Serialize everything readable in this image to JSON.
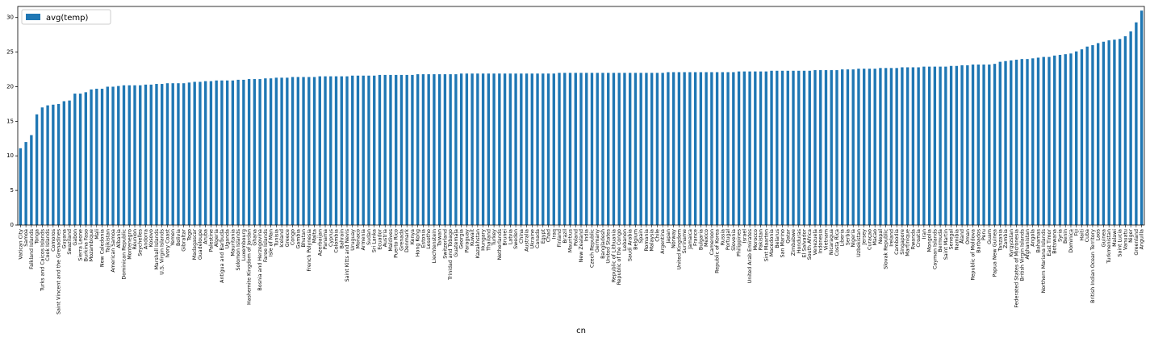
{
  "chart_data": {
    "type": "bar",
    "xlabel": "cn",
    "color": "#1f77b4",
    "legend": "upper left",
    "ylim": [
      0,
      31.6
    ],
    "yticks": [
      0,
      5,
      10,
      15,
      20,
      25,
      30
    ],
    "series": [
      {
        "name": "avg(temp)",
        "color": "#1f77b4",
        "values": [
          11.1,
          12,
          13,
          16,
          17,
          17.3,
          17.4,
          17.5,
          17.9,
          18,
          19,
          19,
          19.2,
          19.6,
          19.7,
          19.7,
          20,
          20,
          20.1,
          20.2,
          20.2,
          20.2,
          20.2,
          20.3,
          20.3,
          20.4,
          20.4,
          20.5,
          20.5,
          20.5,
          20.5,
          20.6,
          20.7,
          20.7,
          20.8,
          20.8,
          20.9,
          20.9,
          20.9,
          20.9,
          21,
          21,
          21.1,
          21.1,
          21.1,
          21.2,
          21.2,
          21.3,
          21.3,
          21.3,
          21.4,
          21.4,
          21.4,
          21.4,
          21.4,
          21.5,
          21.5,
          21.5,
          21.5,
          21.5,
          21.5,
          21.6,
          21.6,
          21.6,
          21.6,
          21.6,
          21.7,
          21.7,
          21.7,
          21.7,
          21.7,
          21.7,
          21.7,
          21.8,
          21.8,
          21.8,
          21.8,
          21.8,
          21.8,
          21.8,
          21.8,
          21.9,
          21.9,
          21.9,
          21.9,
          21.9,
          21.9,
          21.9,
          21.9,
          21.9,
          21.9,
          21.9,
          21.9,
          21.9,
          21.9,
          21.9,
          21.9,
          21.9,
          21.9,
          22,
          22,
          22,
          22,
          22,
          22,
          22,
          22,
          22,
          22,
          22,
          22,
          22,
          22,
          22,
          22,
          22,
          22,
          22,
          22,
          22.1,
          22.1,
          22.1,
          22.1,
          22.1,
          22.1,
          22.1,
          22.1,
          22.1,
          22.1,
          22.1,
          22.1,
          22.1,
          22.2,
          22.2,
          22.2,
          22.2,
          22.2,
          22.2,
          22.3,
          22.3,
          22.3,
          22.3,
          22.3,
          22.3,
          22.3,
          22.3,
          22.4,
          22.4,
          22.4,
          22.4,
          22.4,
          22.5,
          22.5,
          22.5,
          22.6,
          22.6,
          22.6,
          22.6,
          22.7,
          22.7,
          22.7,
          22.7,
          22.8,
          22.8,
          22.8,
          22.8,
          22.9,
          22.9,
          22.9,
          22.9,
          22.9,
          23,
          23,
          23.1,
          23.1,
          23.2,
          23.2,
          23.2,
          23.2,
          23.3,
          23.6,
          23.7,
          23.8,
          23.9,
          24,
          24,
          24.1,
          24.2,
          24.3,
          24.3,
          24.5,
          24.6,
          24.7,
          24.8,
          25.1,
          25.4,
          25.8,
          26,
          26.3,
          26.5,
          26.7,
          26.8,
          26.9,
          27.3,
          28,
          29.3,
          31
        ]
      }
    ],
    "categories": [
      "Vatican City",
      "Samoa",
      "Falkland Islands",
      "Tonga",
      "Turks and Caicos Islands",
      "Cook Islands",
      "Comoros",
      "Saint Vincent and the Grenadines",
      "Guyana",
      "Swaziland",
      "Gabon",
      "Sierra Leone",
      "Burkina Faso",
      "Mozambique",
      "Mali",
      "New Caledonia",
      "Tajikistan",
      "American Samoa",
      "Albania",
      "Dominican Republic",
      "Montenegro",
      "Réunion",
      "Seychelles",
      "Andorra",
      "Kosovo",
      "Marshall Islands",
      "U.S. Virgin Islands",
      "Ivory Coast",
      "Yemen",
      "Bolivia",
      "Gibraltar",
      "Togo",
      "Madagascar",
      "Guadeloupe",
      "Aruba",
      "Palestine",
      "Algeria",
      "Antigua and Barbuda",
      "Uganda",
      "Mauritania",
      "Solomon Islands",
      "Luxembourg",
      "Hashemite Kingdom of Jordan",
      "Ghana",
      "Bosnia and Herzegovina",
      "Faroe Islands",
      "Isle of Man",
      "Tunisia",
      "Iceland",
      "Greece",
      "Congo",
      "Gambia",
      "Bhutan",
      "French Polynesia",
      "Malta",
      "Azerbaijan",
      "Panama",
      "Cyprus",
      "Colombia",
      "Bahrain",
      "Saint Kitts and Nevis",
      "Uruguay",
      "Monaco",
      "Armenia",
      "Sudan",
      "Sri Lanka",
      "Ecuador",
      "Austria",
      "Maldives",
      "Puerto Rico",
      "Grenada",
      "Denmark",
      "Kenya",
      "Hong Kong",
      "Estonia",
      "Lesotho",
      "Liechtenstein",
      "Taiwan",
      "Switzerland",
      "Trinidad and Tobago",
      "Guatemala",
      "Georgia",
      "Paraguay",
      "Kuwait",
      "Kazakhstan",
      "Hungary",
      "Thailand",
      "Turkey",
      "Netherlands",
      "Brunei",
      "Latvia",
      "Sweden",
      "China",
      "Australia",
      "Ukraine",
      "Canada",
      "Egypt",
      "Chad",
      "Iraq",
      "Finland",
      "Brazil",
      "Mauritius",
      "Poland",
      "New Zealand",
      "India",
      "Czech Republic",
      "Germany",
      "Bangladesh",
      "United States",
      "Republic of Lithuania",
      "Republic of the Congo",
      "Lebanon",
      "Saudi Arabia",
      "Belgium",
      "Spain",
      "Romania",
      "Malaysia",
      "Chile",
      "Argentina",
      "Japan",
      "Norway",
      "United Kingdom",
      "Suriname",
      "Jamaica",
      "France",
      "Bulgaria",
      "Mexico",
      "Cameroon",
      "Republic of Korea",
      "Russia",
      "Portugal",
      "Slovenia",
      "Philippines",
      "Israel",
      "United Arab Emirates",
      "Morocco",
      "Pakistan",
      "Sint Maarten",
      "Macedonia",
      "Belarus",
      "San Marino",
      "Qatar",
      "Zimbabwe",
      "Honduras",
      "El Salvador",
      "South Africa",
      "Venezuela",
      "Indonesia",
      "Vietnam",
      "Nicaragua",
      "Costa Rica",
      "Liberia",
      "Serbia",
      "Nigeria",
      "Uzbekistan",
      "Jersey",
      "Curaçao",
      "Macao",
      "Nepal",
      "Slovak Republic",
      "Ireland",
      "Cambodia",
      "Singapore",
      "Martinique",
      "Rwanda",
      "Croatia",
      "Iran",
      "Mongolia",
      "Cayman Islands",
      "Bermuda",
      "Saint Martin",
      "Senegal",
      "Namibia",
      "Åland",
      "Oman",
      "Republic of Moldova",
      "Barbados",
      "Peru",
      "Guam",
      "Papua New Guinea",
      "Tanzania",
      "Zambia",
      "Kyrgyzstan",
      "Federated States of Micronesia",
      "British Virgin Islands",
      "Afghanistan",
      "Angola",
      "Bahamas",
      "Northern Mariana Islands",
      "East Timor",
      "Botswana",
      "Syria",
      "Benin",
      "Dominica",
      "Fiji",
      "Haiti",
      "Cuba",
      "British Indian Ocean Territory",
      "Laos",
      "Guinea",
      "Turkmenistan",
      "Malawi",
      "Saint Lucia",
      "Vanuatu",
      "Niger",
      "Greenland",
      "Anguilla"
    ]
  }
}
